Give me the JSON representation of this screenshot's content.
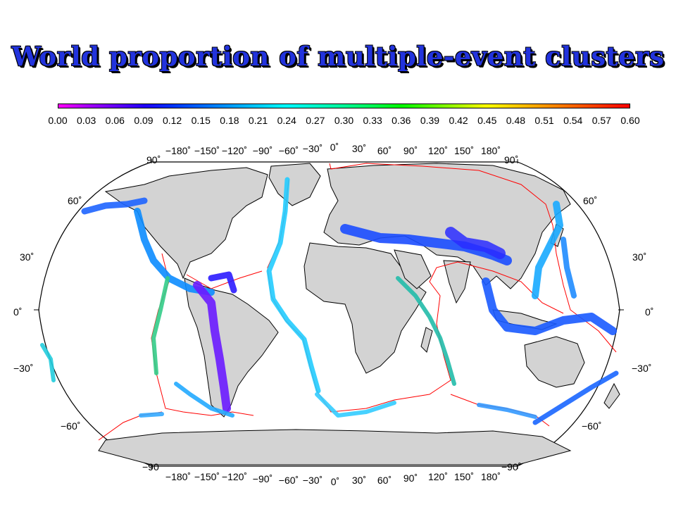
{
  "title": "World proportion of multiple-event clusters",
  "colorbar": {
    "labels": [
      "0.00",
      "0.03",
      "0.06",
      "0.09",
      "0.12",
      "0.15",
      "0.18",
      "0.21",
      "0.24",
      "0.27",
      "0.30",
      "0.33",
      "0.36",
      "0.39",
      "0.42",
      "0.45",
      "0.48",
      "0.51",
      "0.54",
      "0.57",
      "0.60"
    ],
    "colors": [
      "#ff00ff",
      "#aa00ff",
      "#6600ff",
      "#2200ff",
      "#0033ff",
      "#0066ff",
      "#0099ff",
      "#00ccff",
      "#00ffff",
      "#00ffcc",
      "#00ff99",
      "#00ff55",
      "#00ff00",
      "#55ff00",
      "#aaff00",
      "#ffff00",
      "#ffcc00",
      "#ff9900",
      "#ff6600",
      "#ff3300",
      "#ff0000"
    ]
  },
  "map": {
    "projection": "Robinson",
    "land_color": "#d3d3d3",
    "plate_boundary_color": "#ff0000",
    "lon_labels_top": [
      "−180˚",
      "−150˚",
      "−120˚",
      "−90˚",
      "−60˚",
      "−30˚",
      "0˚",
      "30˚",
      "60˚",
      "90˚",
      "120˚",
      "150˚",
      "180˚"
    ],
    "lon_labels_bottom": [
      "−180˚",
      "−150˚",
      "−120˚",
      "−90˚",
      "−60˚",
      "−30˚",
      "0˚",
      "30˚",
      "60˚",
      "90˚",
      "120˚",
      "150˚",
      "180˚"
    ],
    "lat_labels_left": [
      "90˚",
      "60˚",
      "30˚",
      "0˚",
      "−30˚",
      "−60˚",
      "−90"
    ],
    "lat_labels_right": [
      "90˚",
      "60˚",
      "30˚",
      "0˚",
      "−30˚",
      "−60˚",
      "−90˚"
    ]
  }
}
